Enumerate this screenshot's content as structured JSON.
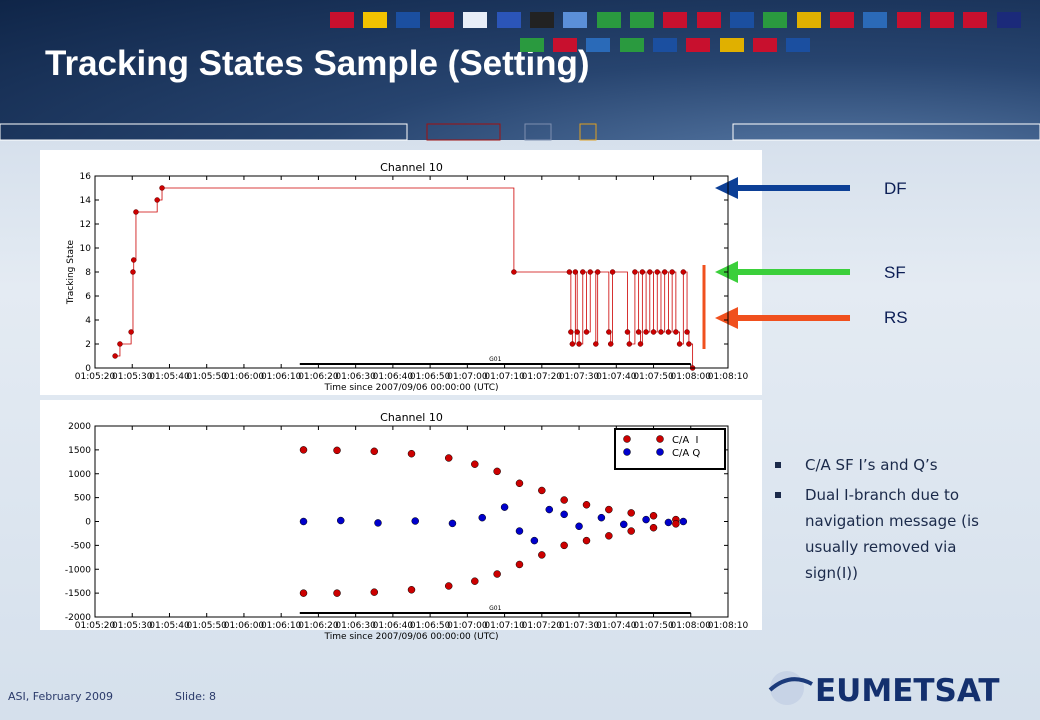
{
  "title": "Tracking States Sample (Setting)",
  "labels": [
    "DF",
    "SF",
    "RS"
  ],
  "bullets": [
    "C/A SF I’s and Q’s",
    "Dual I-branch due to navigation message (is usually removed via sign(I))"
  ],
  "footer": {
    "left": "ASI, February 2009",
    "slide": "Slide: 8",
    "logo": "EUMETSAT"
  },
  "chart_data": [
    {
      "type": "line",
      "step": true,
      "title": "Channel 10",
      "ylabel": "Tracking State",
      "xlabel": "Time since 2007/09/06 00:00:00 (UTC)",
      "xlim": [
        3920,
        4090
      ],
      "xticks": [
        {
          "value": 3920,
          "label": "01:05:20"
        },
        {
          "value": 3930,
          "label": "01:05:30"
        },
        {
          "value": 3940,
          "label": "01:05:40"
        },
        {
          "value": 3950,
          "label": "01:05:50"
        },
        {
          "value": 3960,
          "label": "01:06:00"
        },
        {
          "value": 3970,
          "label": "01:06:10"
        },
        {
          "value": 3980,
          "label": "01:06:20"
        },
        {
          "value": 3990,
          "label": "01:06:30"
        },
        {
          "value": 4000,
          "label": "01:06:40"
        },
        {
          "value": 4010,
          "label": "01:06:50"
        },
        {
          "value": 4020,
          "label": "01:07:00"
        },
        {
          "value": 4030,
          "label": "01:07:10"
        },
        {
          "value": 4040,
          "label": "01:07:20"
        },
        {
          "value": 4050,
          "label": "01:07:30"
        },
        {
          "value": 4060,
          "label": "01:07:40"
        },
        {
          "value": 4070,
          "label": "01:07:50"
        },
        {
          "value": 4080,
          "label": "01:08:00"
        },
        {
          "value": 4090,
          "label": "01:08:10"
        }
      ],
      "ylim": [
        0,
        16
      ],
      "yticks": [
        0,
        2,
        4,
        6,
        8,
        10,
        12,
        14,
        16
      ],
      "grid": false,
      "x": [
        3925.4,
        3926.7,
        3929.7,
        3930.2,
        3930.4,
        3931,
        3936.7,
        3938,
        4032.5,
        4047.4,
        4047.8,
        4048.2,
        4049,
        4049.5,
        4050,
        4051,
        4052,
        4053,
        4054.5,
        4055,
        4058,
        4058.5,
        4059,
        4063,
        4063.5,
        4065,
        4066,
        4066.5,
        4067,
        4068,
        4069,
        4070,
        4071,
        4072,
        4073,
        4074,
        4075,
        4076,
        4077,
        4078,
        4079,
        4079.5,
        4080.5
      ],
      "series": [
        {
          "color": "#cc0000",
          "values": [
            1,
            2,
            3,
            8,
            9,
            13,
            14,
            15,
            8,
            8,
            3,
            2,
            8,
            3,
            2,
            8,
            3,
            8,
            2,
            8,
            3,
            2,
            8,
            3,
            2,
            8,
            3,
            2,
            8,
            3,
            8,
            3,
            8,
            3,
            8,
            3,
            8,
            3,
            2,
            8,
            3,
            2,
            0
          ]
        }
      ],
      "annotations": [
        {
          "text": "G01",
          "x": [
            3975,
            4080
          ]
        }
      ]
    },
    {
      "type": "scatter",
      "title": "Channel 10",
      "xlabel": "Time since 2007/09/06 00:00:00 (UTC)",
      "xlim": [
        3920,
        4090
      ],
      "xticks": [
        {
          "value": 3920,
          "label": "01:05:20"
        },
        {
          "value": 3930,
          "label": "01:05:30"
        },
        {
          "value": 3940,
          "label": "01:05:40"
        },
        {
          "value": 3950,
          "label": "01:05:50"
        },
        {
          "value": 3960,
          "label": "01:06:00"
        },
        {
          "value": 3970,
          "label": "01:06:10"
        },
        {
          "value": 3980,
          "label": "01:06:20"
        },
        {
          "value": 3990,
          "label": "01:06:30"
        },
        {
          "value": 4000,
          "label": "01:06:40"
        },
        {
          "value": 4010,
          "label": "01:06:50"
        },
        {
          "value": 4020,
          "label": "01:07:00"
        },
        {
          "value": 4030,
          "label": "01:07:10"
        },
        {
          "value": 4040,
          "label": "01:07:20"
        },
        {
          "value": 4050,
          "label": "01:07:30"
        },
        {
          "value": 4060,
          "label": "01:07:40"
        },
        {
          "value": 4070,
          "label": "01:07:50"
        },
        {
          "value": 4080,
          "label": "01:08:00"
        },
        {
          "value": 4090,
          "label": "01:08:10"
        }
      ],
      "ylim": [
        -2000,
        2000
      ],
      "yticks": [
        -2000,
        -1500,
        -1000,
        -500,
        0,
        500,
        1000,
        1500,
        2000
      ],
      "grid": false,
      "legend": "upper right",
      "series": [
        {
          "name": "C/A  I",
          "color": "#cc0000",
          "x": [
            3976,
            3976,
            3985,
            3985,
            3995,
            3995,
            4005,
            4005,
            4015,
            4015,
            4022,
            4022,
            4028,
            4028,
            4034,
            4034,
            4040,
            4040,
            4046,
            4046,
            4052,
            4052,
            4058,
            4058,
            4064,
            4064,
            4070,
            4070,
            4076,
            4076
          ],
          "values": [
            1500,
            -1500,
            1490,
            -1500,
            1470,
            -1480,
            1420,
            -1430,
            1330,
            -1350,
            1200,
            -1250,
            1050,
            -1100,
            800,
            -900,
            650,
            -700,
            450,
            -500,
            350,
            -400,
            250,
            -300,
            180,
            -200,
            120,
            -130,
            40,
            -50
          ]
        },
        {
          "name": "C/A Q",
          "color": "#0000cc",
          "x": [
            3976,
            3986,
            3996,
            4006,
            4016,
            4024,
            4030,
            4034,
            4038,
            4042,
            4046,
            4050,
            4056,
            4062,
            4068,
            4074,
            4078
          ],
          "values": [
            0,
            20,
            -30,
            10,
            -40,
            80,
            300,
            -200,
            -400,
            250,
            150,
            -100,
            80,
            -60,
            40,
            -20,
            0
          ]
        }
      ],
      "annotations": [
        {
          "text": "G01",
          "x": [
            3975,
            4080
          ]
        }
      ]
    }
  ]
}
